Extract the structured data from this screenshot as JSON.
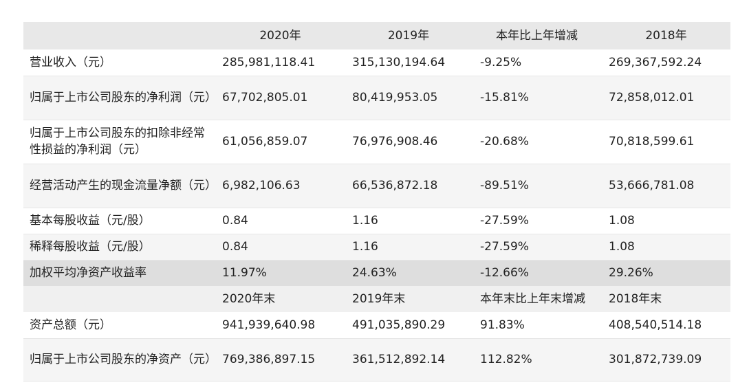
{
  "header": {
    "columns": [
      "",
      "2020年",
      "2019年",
      "本年比上年增减",
      "2018年"
    ]
  },
  "rows": [
    {
      "label": "营业收入（元）",
      "v2020": "285,981,118.41",
      "v2019": "315,130,194.64",
      "change": "-9.25%",
      "v2018": "269,367,592.24"
    },
    {
      "label": "归属于上市公司股东的净利润（元）",
      "v2020": "67,702,805.01",
      "v2019": "80,419,953.05",
      "change": "-15.81%",
      "v2018": "72,858,012.01"
    },
    {
      "label": "归属于上市公司股东的扣除非经常性损益的净利润（元）",
      "v2020": "61,056,859.07",
      "v2019": "76,976,908.46",
      "change": "-20.68%",
      "v2018": "70,818,599.61"
    },
    {
      "label": "经营活动产生的现金流量净额（元）",
      "v2020": "6,982,106.63",
      "v2019": "66,536,872.18",
      "change": "-89.51%",
      "v2018": "53,666,781.08"
    },
    {
      "label": "基本每股收益（元/股）",
      "v2020": "0.84",
      "v2019": "1.16",
      "change": "-27.59%",
      "v2018": "1.08"
    },
    {
      "label": "稀释每股收益（元/股）",
      "v2020": "0.84",
      "v2019": "1.16",
      "change": "-27.59%",
      "v2018": "1.08"
    },
    {
      "label": "加权平均净资产收益率",
      "v2020": "11.97%",
      "v2019": "24.63%",
      "change": "-12.66%",
      "v2018": "29.26%"
    }
  ],
  "subheader": {
    "columns": [
      "",
      "2020年末",
      "2019年末",
      "本年末比上年末增减",
      "2018年末"
    ]
  },
  "rows2": [
    {
      "label": "资产总额（元）",
      "v2020": "941,939,640.98",
      "v2019": "491,035,890.29",
      "change": "91.83%",
      "v2018": "408,540,514.18"
    },
    {
      "label": "归属于上市公司股东的净资产（元）",
      "v2020": "769,386,897.15",
      "v2019": "361,512,892.14",
      "change": "112.82%",
      "v2018": "301,872,739.09"
    }
  ]
}
